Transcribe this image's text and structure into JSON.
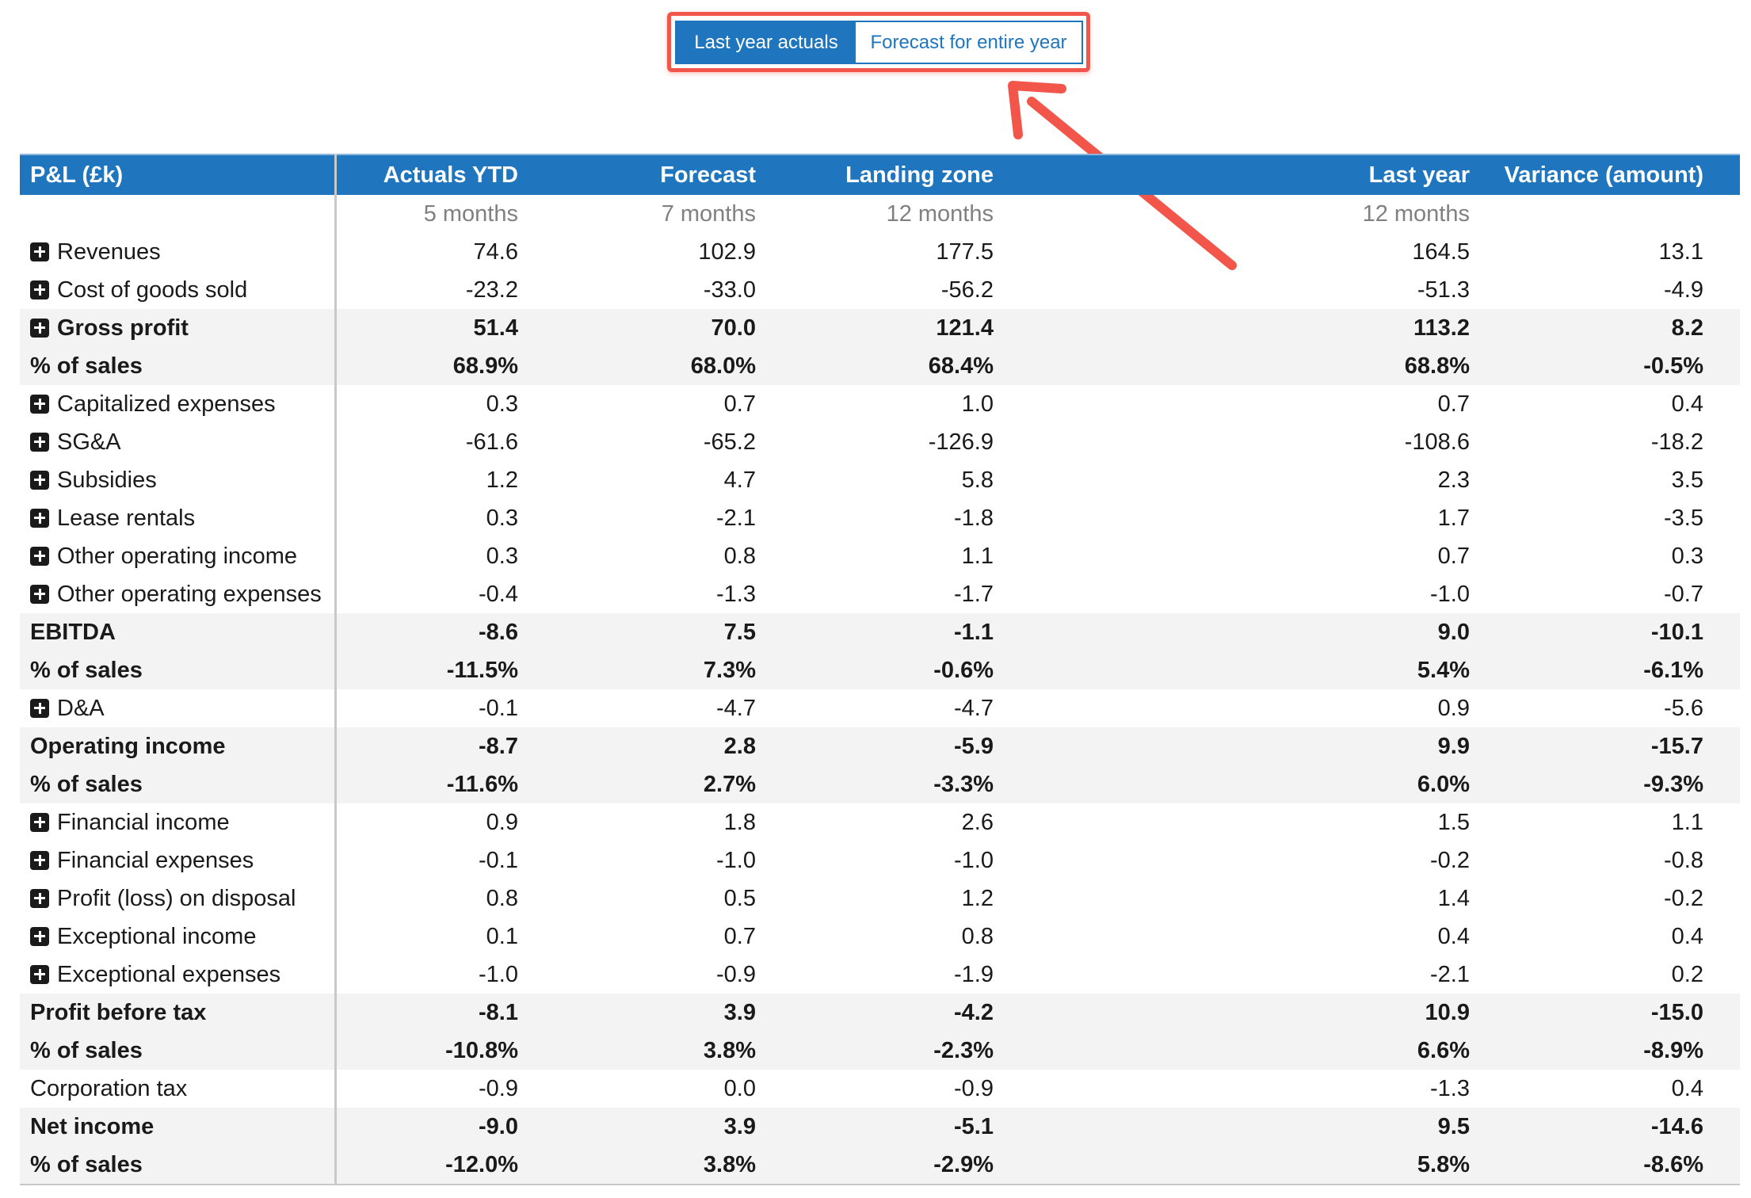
{
  "toggle": {
    "active_label": "Last year actuals",
    "inactive_label": "Forecast for entire year"
  },
  "colors": {
    "header_blue": "#1f75be",
    "highlight_red": "#f2564a",
    "row_shade": "#f3f3f3"
  },
  "table": {
    "headers": {
      "label": "P&L (£k)",
      "actuals_ytd": "Actuals YTD",
      "forecast": "Forecast",
      "landing_zone": "Landing zone",
      "last_year": "Last year",
      "variance": "Variance (amount)"
    },
    "subheaders": {
      "actuals_ytd": "5 months",
      "forecast": "7 months",
      "landing_zone": "12 months",
      "last_year": "12 months"
    },
    "rows": [
      {
        "label": "Revenues",
        "expandable": true,
        "bold": false,
        "ytd": "74.6",
        "fc": "102.9",
        "lz": "177.5",
        "ly": "164.5",
        "var": "13.1"
      },
      {
        "label": "Cost of goods sold",
        "expandable": true,
        "bold": false,
        "ytd": "-23.2",
        "fc": "-33.0",
        "lz": "-56.2",
        "ly": "-51.3",
        "var": "-4.9"
      },
      {
        "label": "Gross profit",
        "expandable": true,
        "bold": true,
        "ytd": "51.4",
        "fc": "70.0",
        "lz": "121.4",
        "ly": "113.2",
        "var": "8.2"
      },
      {
        "label": "% of sales",
        "expandable": false,
        "bold": true,
        "ytd": "68.9%",
        "fc": "68.0%",
        "lz": "68.4%",
        "ly": "68.8%",
        "var": "-0.5%"
      },
      {
        "label": "Capitalized expenses",
        "expandable": true,
        "bold": false,
        "ytd": "0.3",
        "fc": "0.7",
        "lz": "1.0",
        "ly": "0.7",
        "var": "0.4"
      },
      {
        "label": "SG&A",
        "expandable": true,
        "bold": false,
        "ytd": "-61.6",
        "fc": "-65.2",
        "lz": "-126.9",
        "ly": "-108.6",
        "var": "-18.2"
      },
      {
        "label": "Subsidies",
        "expandable": true,
        "bold": false,
        "ytd": "1.2",
        "fc": "4.7",
        "lz": "5.8",
        "ly": "2.3",
        "var": "3.5"
      },
      {
        "label": "Lease rentals",
        "expandable": true,
        "bold": false,
        "ytd": "0.3",
        "fc": "-2.1",
        "lz": "-1.8",
        "ly": "1.7",
        "var": "-3.5"
      },
      {
        "label": "Other operating income",
        "expandable": true,
        "bold": false,
        "ytd": "0.3",
        "fc": "0.8",
        "lz": "1.1",
        "ly": "0.7",
        "var": "0.3"
      },
      {
        "label": "Other operating expenses",
        "expandable": true,
        "bold": false,
        "ytd": "-0.4",
        "fc": "-1.3",
        "lz": "-1.7",
        "ly": "-1.0",
        "var": "-0.7"
      },
      {
        "label": "EBITDA",
        "expandable": false,
        "bold": true,
        "ytd": "-8.6",
        "fc": "7.5",
        "lz": "-1.1",
        "ly": "9.0",
        "var": "-10.1"
      },
      {
        "label": "% of sales",
        "expandable": false,
        "bold": true,
        "ytd": "-11.5%",
        "fc": "7.3%",
        "lz": "-0.6%",
        "ly": "5.4%",
        "var": "-6.1%"
      },
      {
        "label": "D&A",
        "expandable": true,
        "bold": false,
        "ytd": "-0.1",
        "fc": "-4.7",
        "lz": "-4.7",
        "ly": "0.9",
        "var": "-5.6"
      },
      {
        "label": "Operating income",
        "expandable": false,
        "bold": true,
        "ytd": "-8.7",
        "fc": "2.8",
        "lz": "-5.9",
        "ly": "9.9",
        "var": "-15.7"
      },
      {
        "label": "% of sales",
        "expandable": false,
        "bold": true,
        "ytd": "-11.6%",
        "fc": "2.7%",
        "lz": "-3.3%",
        "ly": "6.0%",
        "var": "-9.3%"
      },
      {
        "label": "Financial income",
        "expandable": true,
        "bold": false,
        "ytd": "0.9",
        "fc": "1.8",
        "lz": "2.6",
        "ly": "1.5",
        "var": "1.1"
      },
      {
        "label": "Financial expenses",
        "expandable": true,
        "bold": false,
        "ytd": "-0.1",
        "fc": "-1.0",
        "lz": "-1.0",
        "ly": "-0.2",
        "var": "-0.8"
      },
      {
        "label": "Profit (loss) on disposal",
        "expandable": true,
        "bold": false,
        "ytd": "0.8",
        "fc": "0.5",
        "lz": "1.2",
        "ly": "1.4",
        "var": "-0.2"
      },
      {
        "label": "Exceptional income",
        "expandable": true,
        "bold": false,
        "ytd": "0.1",
        "fc": "0.7",
        "lz": "0.8",
        "ly": "0.4",
        "var": "0.4"
      },
      {
        "label": "Exceptional expenses",
        "expandable": true,
        "bold": false,
        "ytd": "-1.0",
        "fc": "-0.9",
        "lz": "-1.9",
        "ly": "-2.1",
        "var": "0.2"
      },
      {
        "label": "Profit before tax",
        "expandable": false,
        "bold": true,
        "ytd": "-8.1",
        "fc": "3.9",
        "lz": "-4.2",
        "ly": "10.9",
        "var": "-15.0"
      },
      {
        "label": "% of sales",
        "expandable": false,
        "bold": true,
        "ytd": "-10.8%",
        "fc": "3.8%",
        "lz": "-2.3%",
        "ly": "6.6%",
        "var": "-8.9%"
      },
      {
        "label": "Corporation tax",
        "expandable": false,
        "bold": false,
        "ytd": "-0.9",
        "fc": "0.0",
        "lz": "-0.9",
        "ly": "-1.3",
        "var": "0.4"
      },
      {
        "label": "Net income",
        "expandable": false,
        "bold": true,
        "ytd": "-9.0",
        "fc": "3.9",
        "lz": "-5.1",
        "ly": "9.5",
        "var": "-14.6"
      },
      {
        "label": "% of sales",
        "expandable": false,
        "bold": true,
        "ytd": "-12.0%",
        "fc": "3.8%",
        "lz": "-2.9%",
        "ly": "5.8%",
        "var": "-8.6%"
      }
    ]
  }
}
